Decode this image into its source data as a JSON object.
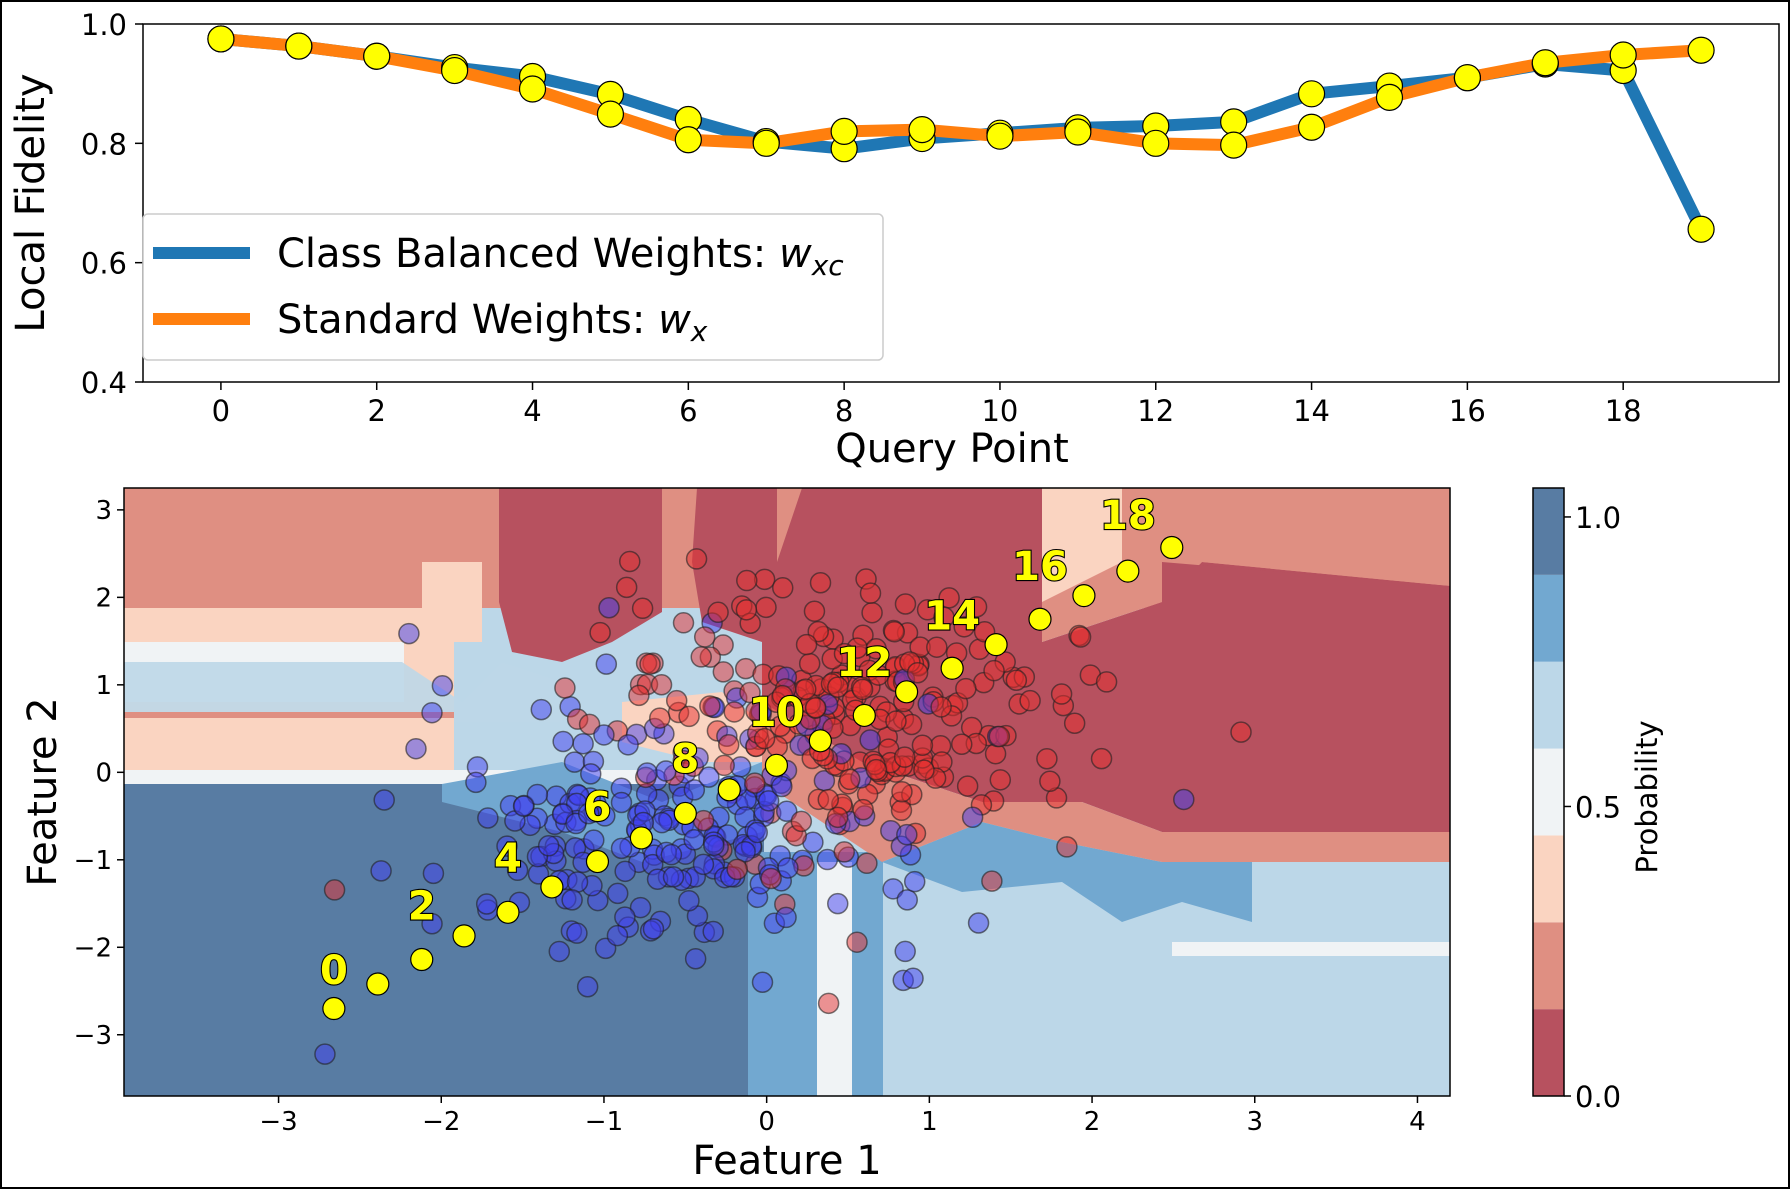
{
  "chart_data": [
    {
      "type": "line",
      "xlabel": "Query Point",
      "ylabel": "Local Fidelity",
      "xlim": [
        -1.0,
        20.0
      ],
      "ylim": [
        0.4,
        1.0
      ],
      "xticks": [
        0,
        2,
        4,
        6,
        8,
        10,
        12,
        14,
        16,
        18
      ],
      "yticks": [
        0.4,
        0.6,
        0.8,
        1.0
      ],
      "ytick_labels": [
        "0.4",
        "0.6",
        "0.8",
        "1.0"
      ],
      "x": [
        0,
        1,
        2,
        3,
        4,
        5,
        6,
        7,
        8,
        9,
        10,
        11,
        12,
        13,
        14,
        15,
        16,
        17,
        18,
        19
      ],
      "legend_position": "lower-left",
      "series": [
        {
          "name": "Class Balanced Weights: ",
          "name_math": "w",
          "name_sub": "xc",
          "color": "#1f77b4",
          "values": [
            0.975,
            0.963,
            0.946,
            0.927,
            0.912,
            0.882,
            0.84,
            0.803,
            0.791,
            0.808,
            0.817,
            0.826,
            0.829,
            0.836,
            0.883,
            0.896,
            0.91,
            0.933,
            0.922,
            0.656
          ]
        },
        {
          "name": "Standard Weights: ",
          "name_math": "w",
          "name_sub": "x",
          "color": "#ff7f0e",
          "values": [
            0.975,
            0.963,
            0.946,
            0.922,
            0.891,
            0.849,
            0.806,
            0.8,
            0.82,
            0.823,
            0.812,
            0.819,
            0.8,
            0.797,
            0.827,
            0.877,
            0.91,
            0.935,
            0.948,
            0.956
          ]
        }
      ],
      "marker_color": "#ffff00"
    },
    {
      "type": "scatter",
      "xlabel": "Feature 1",
      "ylabel": "Feature 2",
      "xlim": [
        -3.95,
        4.2
      ],
      "ylim": [
        -3.7,
        3.25
      ],
      "xticks": [
        -3,
        -2,
        -1,
        0,
        1,
        2,
        3,
        4
      ],
      "xtick_labels": [
        "−3",
        "−2",
        "−1",
        "0",
        "1",
        "2",
        "3",
        "4"
      ],
      "yticks": [
        -3,
        -2,
        -1,
        0,
        1,
        2,
        3
      ],
      "ytick_labels": [
        "−3",
        "−2",
        "−1",
        "0",
        "1",
        "2",
        "3"
      ],
      "colorbar": {
        "label": "Probability",
        "ticks": [
          0.0,
          0.5,
          1.0
        ],
        "tick_labels": [
          "0.0",
          "0.5",
          "1.0"
        ],
        "levels": [
          0.0,
          0.15,
          0.3,
          0.45,
          0.6,
          0.75,
          0.9,
          1.05
        ],
        "colors": [
          "#b7515f",
          "#df8f82",
          "#fad4c1",
          "#f0f3f5",
          "#bcd7e8",
          "#72a8d0",
          "#587ca3"
        ]
      },
      "class_colors": {
        "blue": "#4040f0",
        "red": "#e63030"
      },
      "query_points": {
        "x": [
          -2.66,
          -2.39,
          -2.12,
          -1.86,
          -1.59,
          -1.32,
          -1.04,
          -0.77,
          -0.5,
          -0.23,
          0.06,
          0.33,
          0.6,
          0.86,
          1.14,
          1.41,
          1.68,
          1.95,
          2.22,
          2.49
        ],
        "y": [
          -2.7,
          -2.42,
          -2.14,
          -1.87,
          -1.6,
          -1.31,
          -1.02,
          -0.75,
          -0.47,
          -0.2,
          0.08,
          0.36,
          0.65,
          0.92,
          1.19,
          1.46,
          1.75,
          2.02,
          2.3,
          2.57
        ]
      },
      "annotations": [
        {
          "text": "0",
          "x": -2.66,
          "y": -2.42
        },
        {
          "text": "2",
          "x": -2.12,
          "y": -1.68
        },
        {
          "text": "4",
          "x": -1.59,
          "y": -1.14
        },
        {
          "text": "6",
          "x": -1.04,
          "y": -0.55
        },
        {
          "text": "8",
          "x": -0.5,
          "y": 0.0
        },
        {
          "text": "10",
          "x": 0.06,
          "y": 0.53
        },
        {
          "text": "12",
          "x": 0.6,
          "y": 1.1
        },
        {
          "text": "14",
          "x": 1.14,
          "y": 1.63
        },
        {
          "text": "16",
          "x": 1.68,
          "y": 2.2
        },
        {
          "text": "18",
          "x": 2.22,
          "y": 2.78
        }
      ]
    }
  ]
}
